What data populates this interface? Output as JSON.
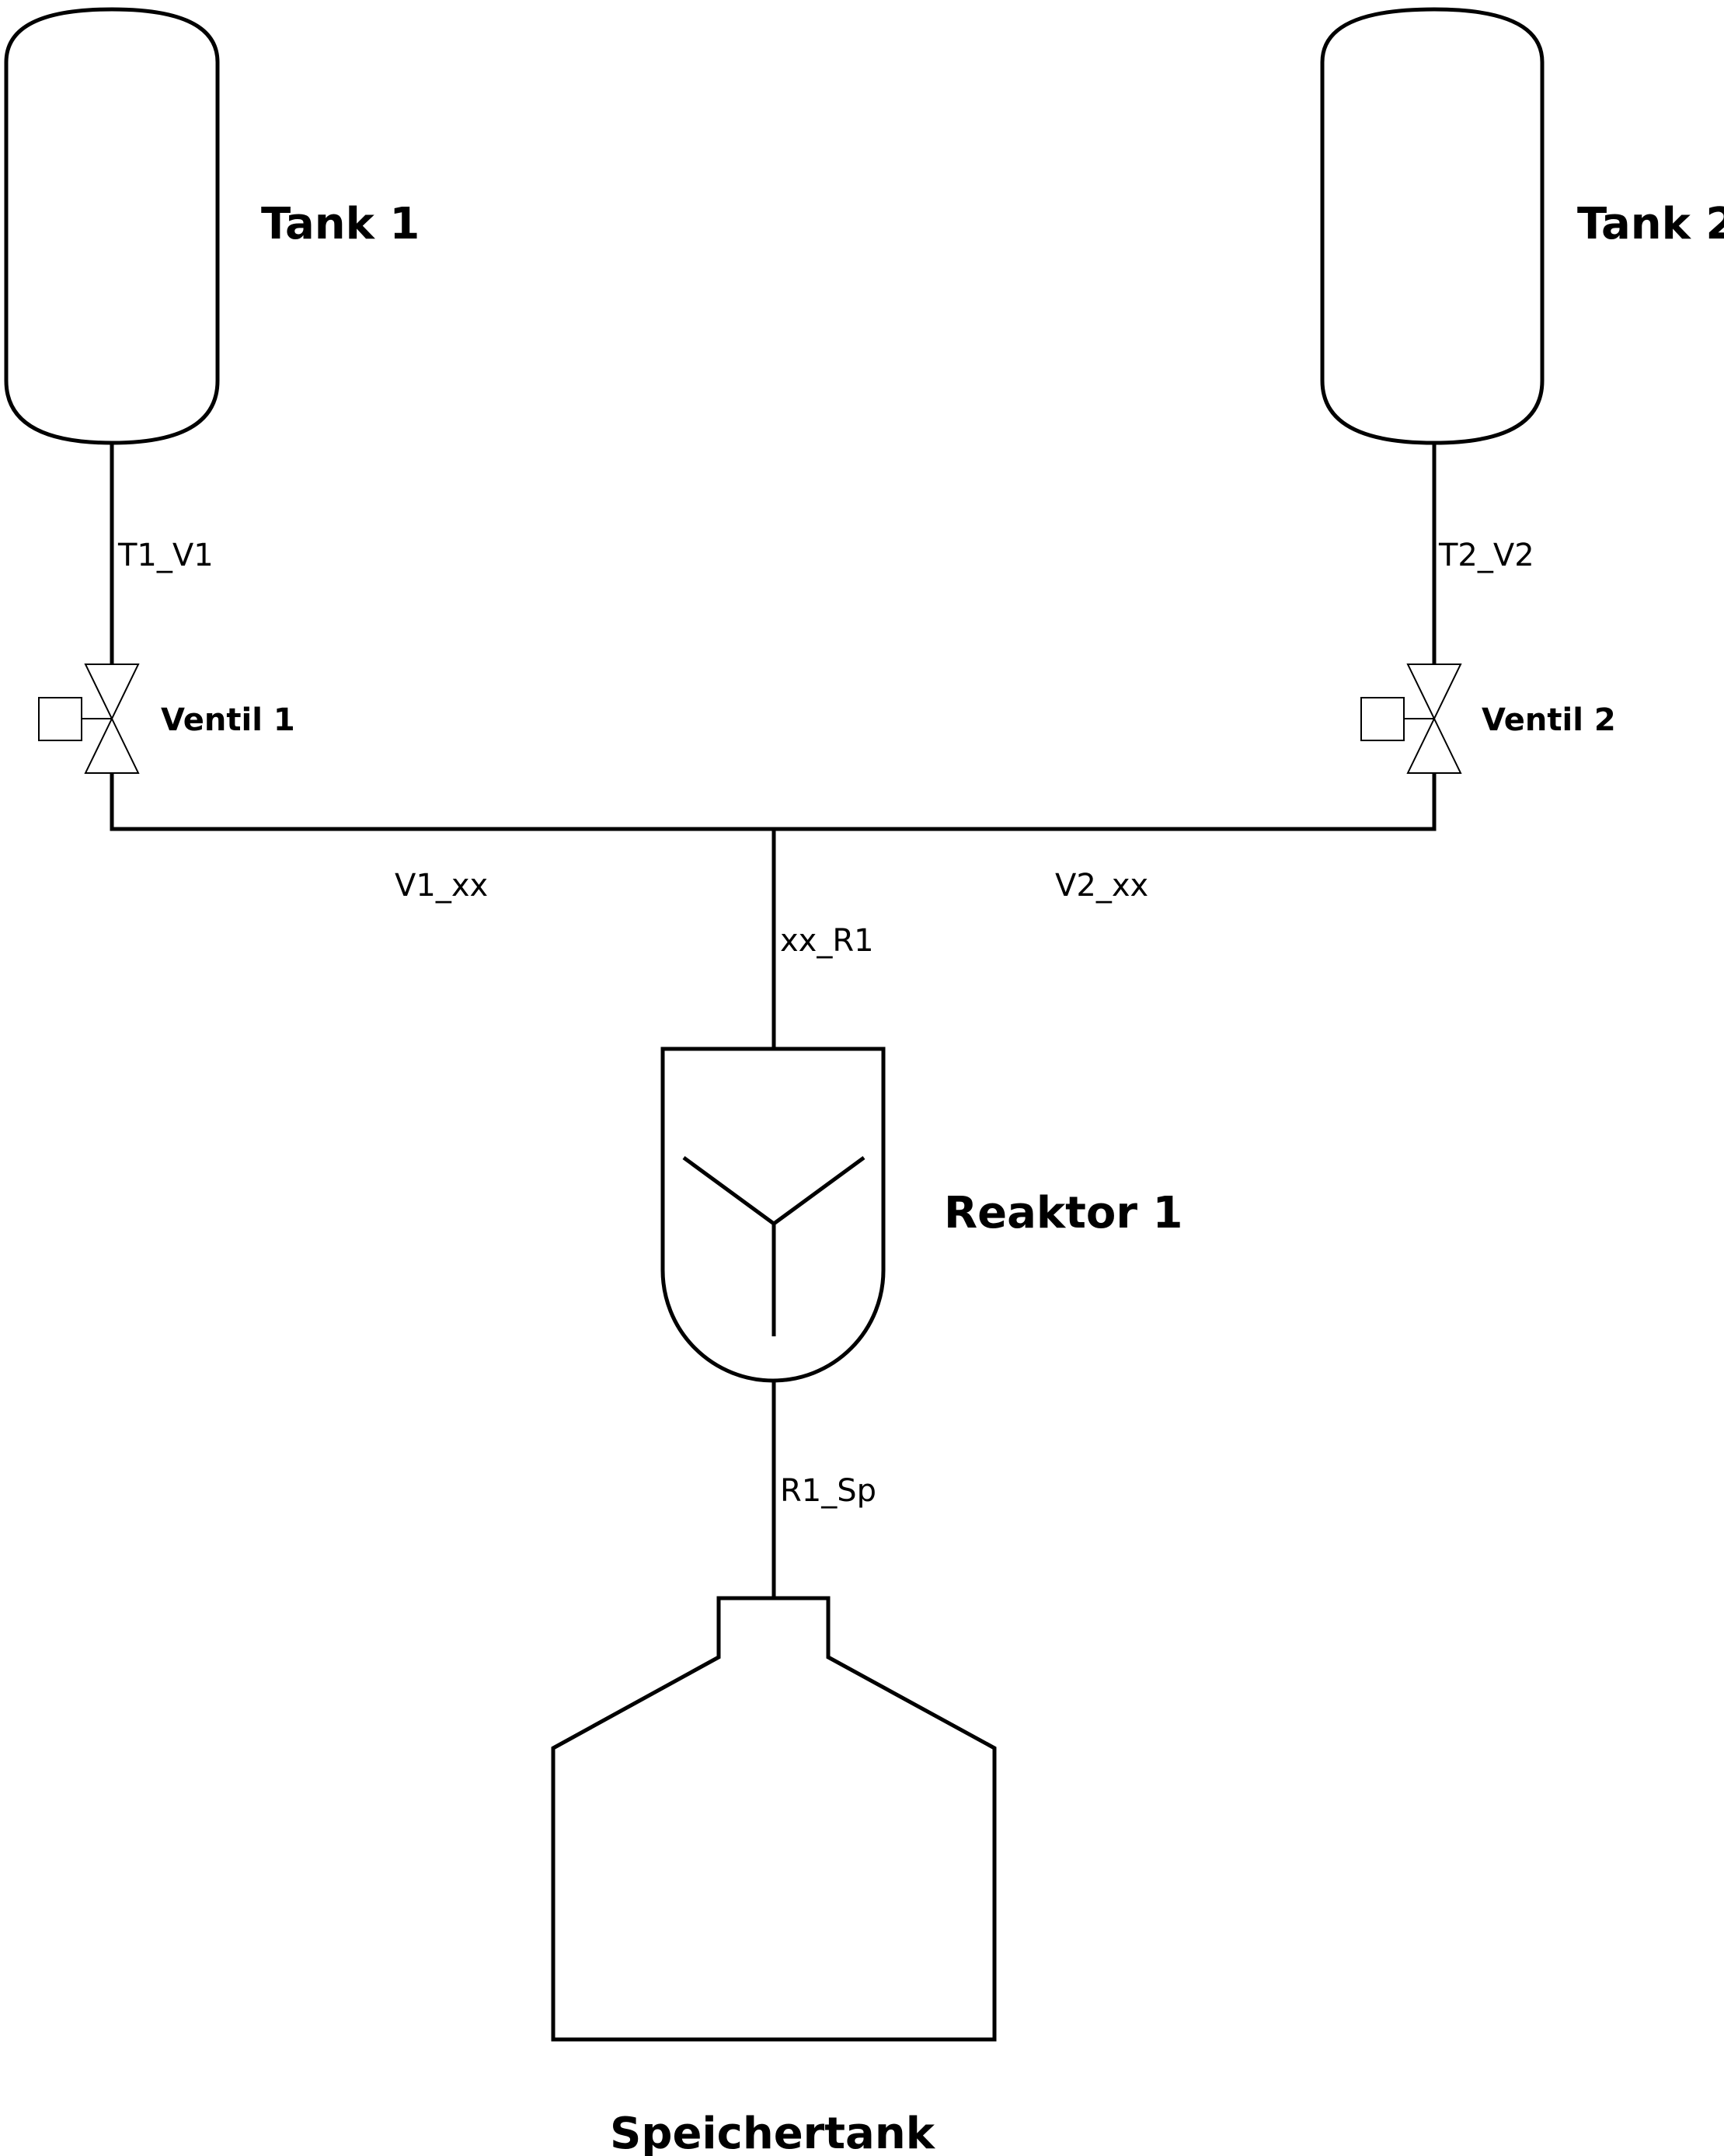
{
  "equipment": {
    "tank_1": "Tank 1",
    "tank_2": "Tank 2",
    "valve_1": "Ventil 1",
    "valve_2": "Ventil 2",
    "reactor_1": "Reaktor 1",
    "storage_tank": "Speichertank"
  },
  "pipes": {
    "t1_v1": "T1_V1",
    "t2_v2": "T2_V2",
    "v1_xx": "V1_xx",
    "v2_xx": "V2_xx",
    "xx_r1": "xx_R1",
    "r1_sp": "R1_Sp"
  },
  "icons": {
    "tank": "vertical-vessel-icon",
    "valve": "actuated-gate-valve-icon",
    "reactor": "stirred-reactor-icon",
    "storage": "storage-tank-icon"
  },
  "colors": {
    "stroke": "#000000",
    "background": "#ffffff"
  }
}
